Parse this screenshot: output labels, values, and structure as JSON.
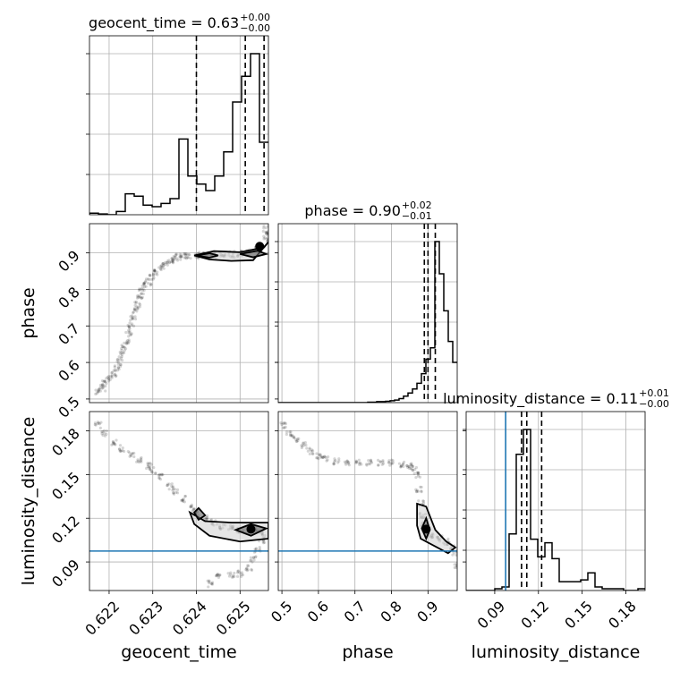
{
  "chart_data": {
    "type": "corner",
    "parameters": [
      {
        "name": "geocent_time",
        "label": "geocent_time",
        "range": [
          0.62155,
          0.62565
        ],
        "ticks": [
          0.622,
          0.623,
          0.624,
          0.625
        ],
        "tick_labels": [
          "0.622",
          "0.623",
          "0.624",
          "0.625"
        ],
        "title_main": "geocent_time = 0.63",
        "title_sup": "+0.00",
        "title_sub": "−0.00",
        "quantiles": [
          0.624,
          0.62512,
          0.62555
        ],
        "histogram": [
          0.01,
          0.005,
          0.0,
          0.02,
          0.13,
          0.115,
          0.06,
          0.05,
          0.07,
          0.1,
          0.47,
          0.24,
          0.19,
          0.15,
          0.24,
          0.39,
          0.7,
          0.86,
          1.0,
          0.45
        ]
      },
      {
        "name": "phase",
        "label": "phase",
        "range": [
          0.49,
          0.98
        ],
        "ticks": [
          0.5,
          0.6,
          0.7,
          0.8,
          0.9
        ],
        "tick_labels": [
          "0.5",
          "0.6",
          "0.7",
          "0.8",
          "0.9"
        ],
        "title_main": "phase = 0.90",
        "title_sup": "+0.02",
        "title_sub": "−0.01",
        "quantiles": [
          0.89,
          0.9,
          0.92
        ],
        "histogram": [
          0.0,
          0.0,
          0.0,
          0.0,
          0.0,
          0.0,
          0.0,
          0.0,
          0.0,
          0.0,
          0.0,
          0.0,
          0.0,
          0.0,
          0.0,
          0.0,
          0.0,
          0.0,
          0.0,
          0.0,
          0.003,
          0.003,
          0.006,
          0.006,
          0.008,
          0.012,
          0.016,
          0.025,
          0.04,
          0.06,
          0.085,
          0.12,
          0.18,
          0.27,
          0.34,
          1.0,
          0.8,
          0.57,
          0.38,
          0.25
        ]
      },
      {
        "name": "luminosity_distance",
        "label": "luminosity_distance",
        "range": [
          0.0704,
          0.1932
        ],
        "ticks": [
          0.09,
          0.12,
          0.15,
          0.18
        ],
        "tick_labels": [
          "0.09",
          "0.12",
          "0.15",
          "0.18"
        ],
        "title_main": "luminosity_distance = 0.11",
        "title_sup": "+0.01",
        "title_sub": "−0.00",
        "quantiles": [
          0.1084,
          0.112,
          0.1222
        ],
        "truth": 0.0975,
        "histogram": [
          0.0,
          0.0,
          0.0,
          0.0,
          0.01,
          0.02,
          0.32,
          0.77,
          0.91,
          0.29,
          0.19,
          0.27,
          0.18,
          0.05,
          0.05,
          0.05,
          0.06,
          0.1,
          0.02,
          0.01,
          0.01,
          0.01,
          0.0,
          0.0,
          0.01
        ]
      }
    ],
    "truth_line_color": "#1f77b4",
    "contour_color": "#000000",
    "grid": true,
    "scatter": [
      {
        "x_param": "geocent_time",
        "y_param": "phase",
        "points": [
          [
            0.62175,
            0.52
          ],
          [
            0.62185,
            0.53
          ],
          [
            0.6219,
            0.545
          ],
          [
            0.622,
            0.555
          ],
          [
            0.6221,
            0.57
          ],
          [
            0.6222,
            0.585
          ],
          [
            0.62225,
            0.6
          ],
          [
            0.6223,
            0.62
          ],
          [
            0.62235,
            0.64
          ],
          [
            0.6224,
            0.66
          ],
          [
            0.62245,
            0.68
          ],
          [
            0.6225,
            0.7
          ],
          [
            0.62255,
            0.72
          ],
          [
            0.6226,
            0.74
          ],
          [
            0.62265,
            0.76
          ],
          [
            0.6227,
            0.78
          ],
          [
            0.62275,
            0.795
          ],
          [
            0.6228,
            0.81
          ],
          [
            0.6229,
            0.82
          ],
          [
            0.623,
            0.835
          ],
          [
            0.6231,
            0.848
          ],
          [
            0.6232,
            0.86
          ],
          [
            0.6233,
            0.87
          ],
          [
            0.6234,
            0.878
          ],
          [
            0.6235,
            0.884
          ],
          [
            0.6236,
            0.888
          ],
          [
            0.6237,
            0.89
          ],
          [
            0.6238,
            0.892
          ],
          [
            0.624,
            0.893
          ],
          [
            0.6242,
            0.894
          ],
          [
            0.6244,
            0.895
          ],
          [
            0.6246,
            0.896
          ],
          [
            0.6248,
            0.896
          ],
          [
            0.625,
            0.897
          ],
          [
            0.6252,
            0.9
          ],
          [
            0.6254,
            0.91
          ],
          [
            0.6255,
            0.922
          ],
          [
            0.6256,
            0.935
          ],
          [
            0.6256,
            0.95
          ],
          [
            0.6256,
            0.965
          ]
        ],
        "contour_center": [
          0.62545,
          0.918
        ],
        "contours": [
          [
            [
              0.62395,
              0.893
            ],
            [
              0.6244,
              0.905
            ],
            [
              0.625,
              0.902
            ],
            [
              0.62555,
              0.915
            ],
            [
              0.62565,
              0.93
            ],
            [
              0.6253,
              0.88
            ],
            [
              0.6248,
              0.878
            ],
            [
              0.6243,
              0.882
            ],
            [
              0.62395,
              0.893
            ]
          ],
          [
            [
              0.624,
              0.893
            ],
            [
              0.6243,
              0.899
            ],
            [
              0.6245,
              0.893
            ],
            [
              0.6243,
              0.887
            ],
            [
              0.624,
              0.893
            ]
          ],
          [
            [
              0.625,
              0.897
            ],
            [
              0.6254,
              0.906
            ],
            [
              0.6256,
              0.897
            ],
            [
              0.6253,
              0.888
            ],
            [
              0.625,
              0.897
            ]
          ]
        ]
      },
      {
        "x_param": "geocent_time",
        "y_param": "luminosity_distance",
        "points": [
          [
            0.62175,
            0.184
          ],
          [
            0.6219,
            0.178
          ],
          [
            0.6221,
            0.172
          ],
          [
            0.6223,
            0.168
          ],
          [
            0.6225,
            0.164
          ],
          [
            0.6227,
            0.16
          ],
          [
            0.6229,
            0.156
          ],
          [
            0.623,
            0.153
          ],
          [
            0.6232,
            0.148
          ],
          [
            0.6234,
            0.142
          ],
          [
            0.6235,
            0.138
          ],
          [
            0.6237,
            0.133
          ],
          [
            0.6239,
            0.127
          ],
          [
            0.624,
            0.124
          ],
          [
            0.6242,
            0.12
          ],
          [
            0.6244,
            0.117
          ],
          [
            0.6246,
            0.114
          ],
          [
            0.6248,
            0.113
          ],
          [
            0.625,
            0.112
          ],
          [
            0.6252,
            0.112
          ],
          [
            0.6254,
            0.113
          ],
          [
            0.6255,
            0.11
          ],
          [
            0.6255,
            0.105
          ],
          [
            0.6254,
            0.098
          ],
          [
            0.6253,
            0.092
          ],
          [
            0.6252,
            0.086
          ],
          [
            0.625,
            0.082
          ],
          [
            0.6248,
            0.081
          ],
          [
            0.6245,
            0.08
          ],
          [
            0.6243,
            0.075
          ]
        ],
        "contour_center": [
          0.62525,
          0.1125
        ],
        "contours": [
          [
            [
              0.62385,
              0.124
            ],
            [
              0.6242,
              0.118
            ],
            [
              0.6248,
              0.117
            ],
            [
              0.62565,
              0.117
            ],
            [
              0.62565,
              0.106
            ],
            [
              0.625,
              0.104
            ],
            [
              0.6243,
              0.108
            ],
            [
              0.62395,
              0.116
            ],
            [
              0.62385,
              0.124
            ]
          ],
          [
            [
              0.62395,
              0.124
            ],
            [
              0.62405,
              0.119
            ],
            [
              0.6242,
              0.122
            ],
            [
              0.62405,
              0.127
            ],
            [
              0.62395,
              0.124
            ]
          ],
          [
            [
              0.6249,
              0.112
            ],
            [
              0.62525,
              0.116
            ],
            [
              0.6256,
              0.113
            ],
            [
              0.62525,
              0.108
            ],
            [
              0.6249,
              0.112
            ]
          ]
        ]
      },
      {
        "x_param": "phase",
        "y_param": "luminosity_distance",
        "points": [
          [
            0.505,
            0.184
          ],
          [
            0.52,
            0.178
          ],
          [
            0.54,
            0.174
          ],
          [
            0.56,
            0.17
          ],
          [
            0.58,
            0.166
          ],
          [
            0.6,
            0.163
          ],
          [
            0.62,
            0.161
          ],
          [
            0.65,
            0.159
          ],
          [
            0.68,
            0.158
          ],
          [
            0.71,
            0.158
          ],
          [
            0.74,
            0.158
          ],
          [
            0.77,
            0.158
          ],
          [
            0.8,
            0.158
          ],
          [
            0.83,
            0.157
          ],
          [
            0.85,
            0.156
          ],
          [
            0.86,
            0.155
          ],
          [
            0.87,
            0.15
          ],
          [
            0.875,
            0.14
          ],
          [
            0.88,
            0.13
          ],
          [
            0.885,
            0.122
          ],
          [
            0.89,
            0.115
          ],
          [
            0.895,
            0.112
          ],
          [
            0.91,
            0.108
          ],
          [
            0.93,
            0.106
          ],
          [
            0.95,
            0.104
          ],
          [
            0.965,
            0.1
          ],
          [
            0.975,
            0.096
          ],
          [
            0.98,
            0.088
          ]
        ],
        "contour_center": [
          0.895,
          0.1125
        ],
        "contours": [
          [
            [
              0.87,
              0.13
            ],
            [
              0.895,
              0.128
            ],
            [
              0.92,
              0.112
            ],
            [
              0.95,
              0.104
            ],
            [
              0.975,
              0.1
            ],
            [
              0.955,
              0.096
            ],
            [
              0.91,
              0.102
            ],
            [
              0.88,
              0.106
            ],
            [
              0.87,
              0.115
            ],
            [
              0.87,
              0.13
            ]
          ],
          [
            [
              0.883,
              0.113
            ],
            [
              0.895,
              0.12
            ],
            [
              0.905,
              0.112
            ],
            [
              0.895,
              0.106
            ],
            [
              0.883,
              0.113
            ]
          ]
        ]
      }
    ]
  }
}
